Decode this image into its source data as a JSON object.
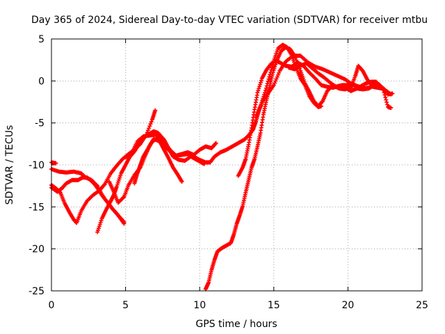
{
  "chart_data": {
    "type": "scatter",
    "title": "Day 365 of 2024, Sidereal Day-to-day VTEC variation (SDTVAR) for receiver mtbu",
    "xlabel": "GPS time / hours",
    "ylabel": "SDTVAR / TECUs",
    "xlim": [
      0,
      25
    ],
    "ylim": [
      -25,
      5
    ],
    "xticks": [
      0,
      5,
      10,
      15,
      20,
      25
    ],
    "yticks": [
      5,
      0,
      -5,
      -10,
      -15,
      -20,
      -25
    ],
    "grid": true,
    "marker": "+",
    "color": "#ff0000",
    "series": [
      {
        "values": [
          [
            0.0,
            -9.7
          ],
          [
            0.3,
            -9.8
          ]
        ]
      },
      {
        "values": [
          [
            0.0,
            -10.5
          ],
          [
            0.5,
            -10.8
          ],
          [
            1.0,
            -10.9
          ],
          [
            1.5,
            -10.8
          ],
          [
            2.0,
            -11.0
          ],
          [
            2.3,
            -11.5
          ],
          [
            2.7,
            -11.8
          ],
          [
            3.1,
            -12.5
          ],
          [
            3.5,
            -13.8
          ],
          [
            4.0,
            -15.0
          ],
          [
            4.5,
            -16.0
          ],
          [
            4.9,
            -17.0
          ]
        ]
      },
      {
        "values": [
          [
            0.0,
            -12.4
          ],
          [
            0.3,
            -12.8
          ],
          [
            0.6,
            -13.3
          ],
          [
            0.9,
            -14.6
          ],
          [
            1.2,
            -15.6
          ],
          [
            1.5,
            -16.5
          ],
          [
            1.7,
            -16.9
          ],
          [
            2.0,
            -15.5
          ],
          [
            2.4,
            -14.3
          ],
          [
            2.8,
            -13.6
          ],
          [
            3.2,
            -13.1
          ],
          [
            3.6,
            -12.3
          ],
          [
            4.0,
            -11.0
          ],
          [
            4.4,
            -10.1
          ],
          [
            4.8,
            -9.3
          ],
          [
            5.2,
            -8.7
          ],
          [
            5.6,
            -8.2
          ],
          [
            6.0,
            -7.5
          ],
          [
            6.4,
            -6.4
          ],
          [
            6.8,
            -4.6
          ],
          [
            7.0,
            -3.5
          ]
        ]
      },
      {
        "values": [
          [
            0.0,
            -12.7
          ],
          [
            0.4,
            -13.2
          ],
          [
            0.7,
            -12.8
          ],
          [
            1.0,
            -12.2
          ],
          [
            1.4,
            -11.8
          ],
          [
            1.8,
            -11.8
          ],
          [
            2.1,
            -11.5
          ],
          [
            2.4,
            -11.5
          ],
          [
            2.7,
            -11.9
          ],
          [
            3.0,
            -12.5
          ],
          [
            3.4,
            -13.6
          ],
          [
            3.8,
            -14.5
          ],
          [
            4.2,
            -15.4
          ],
          [
            4.5,
            -16.0
          ],
          [
            4.9,
            -16.8
          ]
        ]
      },
      {
        "values": [
          [
            3.1,
            -18.0
          ],
          [
            3.4,
            -16.4
          ],
          [
            3.7,
            -15.3
          ],
          [
            4.0,
            -14.3
          ],
          [
            4.2,
            -13.6
          ],
          [
            4.4,
            -12.6
          ],
          [
            4.7,
            -11.0
          ],
          [
            5.0,
            -10.0
          ],
          [
            5.3,
            -9.0
          ],
          [
            5.6,
            -8.4
          ],
          [
            5.9,
            -7.5
          ],
          [
            6.2,
            -6.7
          ],
          [
            6.5,
            -6.4
          ],
          [
            6.9,
            -6.0
          ],
          [
            7.2,
            -6.2
          ],
          [
            7.6,
            -7.0
          ],
          [
            7.9,
            -8.0
          ],
          [
            8.2,
            -9.0
          ],
          [
            8.6,
            -9.4
          ],
          [
            9.0,
            -9.5
          ],
          [
            9.4,
            -9.0
          ],
          [
            9.8,
            -9.4
          ],
          [
            10.3,
            -9.9
          ]
        ]
      },
      {
        "values": [
          [
            3.9,
            -12.0
          ],
          [
            4.2,
            -13.2
          ],
          [
            4.5,
            -14.5
          ],
          [
            4.9,
            -13.8
          ],
          [
            5.2,
            -12.4
          ],
          [
            5.6,
            -11.2
          ],
          [
            6.0,
            -10.3
          ],
          [
            6.3,
            -9.0
          ],
          [
            6.6,
            -7.8
          ],
          [
            6.9,
            -6.9
          ],
          [
            7.3,
            -7.2
          ],
          [
            7.6,
            -8.2
          ],
          [
            7.9,
            -9.2
          ],
          [
            8.2,
            -10.3
          ],
          [
            8.5,
            -11.1
          ],
          [
            8.8,
            -12.0
          ]
        ]
      },
      {
        "values": [
          [
            5.0,
            -9.1
          ],
          [
            5.4,
            -8.6
          ],
          [
            5.8,
            -7.2
          ],
          [
            6.2,
            -6.6
          ],
          [
            6.6,
            -6.5
          ],
          [
            7.0,
            -6.4
          ],
          [
            7.3,
            -6.8
          ],
          [
            7.6,
            -7.7
          ],
          [
            8.0,
            -8.4
          ],
          [
            8.4,
            -8.9
          ],
          [
            8.8,
            -8.7
          ],
          [
            9.2,
            -8.5
          ],
          [
            9.6,
            -8.8
          ],
          [
            10.0,
            -8.2
          ],
          [
            10.4,
            -7.8
          ],
          [
            10.8,
            -8.0
          ],
          [
            11.1,
            -7.4
          ]
        ]
      },
      {
        "values": [
          [
            5.6,
            -12.2
          ],
          [
            5.8,
            -11.0
          ],
          [
            6.0,
            -10.0
          ],
          [
            6.2,
            -9.0
          ],
          [
            6.5,
            -8.1
          ],
          [
            6.8,
            -7.2
          ],
          [
            7.1,
            -6.9
          ],
          [
            7.5,
            -7.2
          ],
          [
            7.8,
            -7.8
          ],
          [
            8.1,
            -8.4
          ],
          [
            8.4,
            -8.9
          ],
          [
            8.8,
            -8.8
          ],
          [
            9.2,
            -8.7
          ],
          [
            9.6,
            -9.0
          ],
          [
            10.0,
            -9.4
          ],
          [
            10.4,
            -9.7
          ],
          [
            10.7,
            -9.7
          ],
          [
            11.0,
            -9.0
          ],
          [
            11.4,
            -8.5
          ],
          [
            11.8,
            -8.2
          ],
          [
            12.2,
            -7.8
          ],
          [
            12.6,
            -7.4
          ],
          [
            13.0,
            -7.0
          ],
          [
            13.3,
            -6.5
          ],
          [
            13.6,
            -5.8
          ],
          [
            13.8,
            -4.8
          ],
          [
            14.0,
            -3.5
          ],
          [
            14.3,
            -2.2
          ],
          [
            14.6,
            -1.5
          ],
          [
            15.0,
            -0.5
          ],
          [
            15.4,
            1.2
          ],
          [
            15.8,
            2.3
          ],
          [
            16.3,
            3.0
          ],
          [
            16.8,
            3.0
          ],
          [
            17.3,
            2.2
          ],
          [
            17.8,
            1.7
          ],
          [
            18.3,
            1.4
          ],
          [
            18.8,
            1.0
          ],
          [
            19.3,
            0.6
          ],
          [
            19.8,
            0.2
          ],
          [
            20.2,
            -0.3
          ],
          [
            20.6,
            -0.6
          ],
          [
            21.0,
            -0.9
          ],
          [
            21.4,
            -0.8
          ],
          [
            21.8,
            -0.5
          ],
          [
            22.2,
            -0.6
          ],
          [
            22.6,
            -1.2
          ],
          [
            22.9,
            -1.6
          ]
        ]
      },
      {
        "values": [
          [
            10.4,
            -24.8
          ],
          [
            10.6,
            -24.0
          ],
          [
            10.8,
            -22.5
          ],
          [
            11.0,
            -21.3
          ],
          [
            11.2,
            -20.3
          ],
          [
            11.5,
            -19.9
          ],
          [
            11.8,
            -19.6
          ],
          [
            12.1,
            -19.3
          ],
          [
            12.3,
            -18.3
          ],
          [
            12.5,
            -17.0
          ],
          [
            12.7,
            -16.0
          ],
          [
            12.9,
            -14.9
          ],
          [
            13.1,
            -13.3
          ],
          [
            13.3,
            -11.8
          ],
          [
            13.5,
            -10.3
          ],
          [
            13.7,
            -9.3
          ],
          [
            13.9,
            -7.8
          ],
          [
            14.1,
            -6.2
          ],
          [
            14.3,
            -4.0
          ],
          [
            14.5,
            -2.3
          ],
          [
            14.7,
            -0.8
          ],
          [
            14.9,
            0.8
          ],
          [
            15.2,
            2.4
          ],
          [
            15.5,
            3.6
          ],
          [
            15.8,
            4.0
          ],
          [
            16.1,
            3.8
          ],
          [
            16.4,
            3.0
          ],
          [
            16.8,
            1.2
          ],
          [
            17.1,
            -0.3
          ],
          [
            17.4,
            -1.3
          ],
          [
            17.7,
            -2.4
          ],
          [
            18.0,
            -3.0
          ],
          [
            18.3,
            -2.4
          ],
          [
            18.6,
            -1.2
          ],
          [
            19.0,
            -0.5
          ],
          [
            19.4,
            -0.9
          ],
          [
            19.8,
            -1.0
          ],
          [
            20.2,
            -0.8
          ],
          [
            20.5,
            0.6
          ],
          [
            20.7,
            1.8
          ],
          [
            21.0,
            1.2
          ],
          [
            21.3,
            0.2
          ],
          [
            21.7,
            -0.7
          ],
          [
            22.0,
            -0.8
          ],
          [
            22.3,
            -0.9
          ],
          [
            22.7,
            -1.6
          ],
          [
            23.0,
            -1.5
          ]
        ]
      },
      {
        "values": [
          [
            12.6,
            -11.3
          ],
          [
            12.9,
            -10.3
          ],
          [
            13.1,
            -9.3
          ],
          [
            13.3,
            -7.6
          ],
          [
            13.5,
            -5.6
          ],
          [
            13.7,
            -3.4
          ],
          [
            13.9,
            -1.4
          ],
          [
            14.2,
            0.3
          ],
          [
            14.5,
            1.3
          ],
          [
            14.8,
            2.0
          ],
          [
            15.1,
            2.4
          ],
          [
            15.4,
            2.2
          ],
          [
            15.8,
            1.8
          ],
          [
            16.2,
            1.7
          ],
          [
            16.6,
            2.2
          ],
          [
            17.0,
            1.8
          ],
          [
            17.4,
            1.0
          ],
          [
            17.8,
            0.3
          ],
          [
            18.2,
            -0.5
          ],
          [
            18.6,
            -0.7
          ],
          [
            19.0,
            -0.8
          ],
          [
            19.4,
            -0.6
          ],
          [
            19.8,
            -0.8
          ],
          [
            20.2,
            -1.2
          ],
          [
            20.6,
            -0.9
          ],
          [
            21.0,
            -1.0
          ],
          [
            21.4,
            -0.9
          ],
          [
            21.8,
            -0.5
          ],
          [
            22.1,
            -0.4
          ],
          [
            22.4,
            -1.1
          ],
          [
            22.7,
            -3.1
          ],
          [
            22.9,
            -3.2
          ]
        ]
      },
      {
        "values": [
          [
            13.8,
            -4.3
          ],
          [
            14.1,
            -3.0
          ],
          [
            14.4,
            -1.4
          ],
          [
            14.7,
            0.5
          ],
          [
            15.0,
            2.4
          ],
          [
            15.3,
            3.9
          ],
          [
            15.6,
            4.3
          ],
          [
            15.9,
            4.0
          ],
          [
            16.2,
            3.1
          ],
          [
            16.5,
            1.6
          ],
          [
            16.8,
            0.3
          ],
          [
            17.1,
            -0.5
          ],
          [
            17.4,
            -1.8
          ],
          [
            17.7,
            -2.6
          ],
          [
            18.0,
            -3.1
          ],
          [
            18.2,
            -3.0
          ]
        ]
      },
      {
        "values": [
          [
            16.0,
            1.6
          ],
          [
            16.4,
            1.4
          ],
          [
            16.8,
            1.8
          ],
          [
            17.2,
            2.1
          ],
          [
            17.6,
            1.5
          ],
          [
            18.0,
            0.9
          ],
          [
            18.4,
            0.4
          ],
          [
            18.8,
            -0.2
          ],
          [
            19.2,
            -0.7
          ],
          [
            19.6,
            -0.5
          ],
          [
            20.0,
            -0.5
          ],
          [
            20.4,
            -0.5
          ],
          [
            20.8,
            -0.7
          ],
          [
            21.2,
            -0.3
          ],
          [
            21.6,
            -0.1
          ],
          [
            21.9,
            -0.1
          ],
          [
            22.3,
            -0.8
          ]
        ]
      }
    ]
  }
}
